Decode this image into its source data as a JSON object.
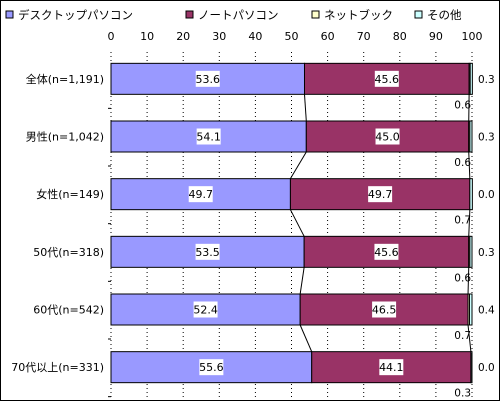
{
  "chart_data": {
    "type": "bar",
    "stacked": true,
    "orientation": "horizontal",
    "percent_stacked": true,
    "categories": [
      "全体(n=1,191)",
      "男性(n=1,042)",
      "女性(n=149)",
      "50代(n=318)",
      "60代(n=542)",
      "70代以上(n=331)"
    ],
    "series": [
      {
        "name": "デスクトップパソコン",
        "values": [
          53.6,
          54.1,
          49.7,
          53.5,
          52.4,
          55.6
        ],
        "color": "#9999ff",
        "labels": [
          "53.6",
          "54.1",
          "49.7",
          "53.5",
          "52.4",
          "55.6"
        ]
      },
      {
        "name": "ノートパソコン",
        "values": [
          45.6,
          45.0,
          49.7,
          45.6,
          46.5,
          44.1
        ],
        "color": "#993366",
        "labels": [
          "45.6",
          "45.0",
          "49.7",
          "45.6",
          "46.5",
          "44.1"
        ]
      },
      {
        "name": "ネットブック",
        "values": [
          0.3,
          0.3,
          0.0,
          0.3,
          0.4,
          0.0
        ],
        "color": "#ffffcc",
        "labels": [
          "0.3",
          "0.3",
          "0.0",
          "0.3",
          "0.4",
          "0.0"
        ]
      },
      {
        "name": "その他",
        "values": [
          0.6,
          0.6,
          0.7,
          0.6,
          0.7,
          0.3
        ],
        "color": "#ccffff",
        "labels": [
          "0.6",
          "0.6",
          "0.7",
          "0.6",
          "0.7",
          "0.3"
        ]
      }
    ],
    "xlim": [
      0,
      100
    ],
    "x_ticks": [
      "0",
      "10",
      "20",
      "30",
      "40",
      "50",
      "60",
      "70",
      "80",
      "90",
      "100"
    ],
    "legend_position": "top",
    "grid": true,
    "connector_lines": true
  }
}
